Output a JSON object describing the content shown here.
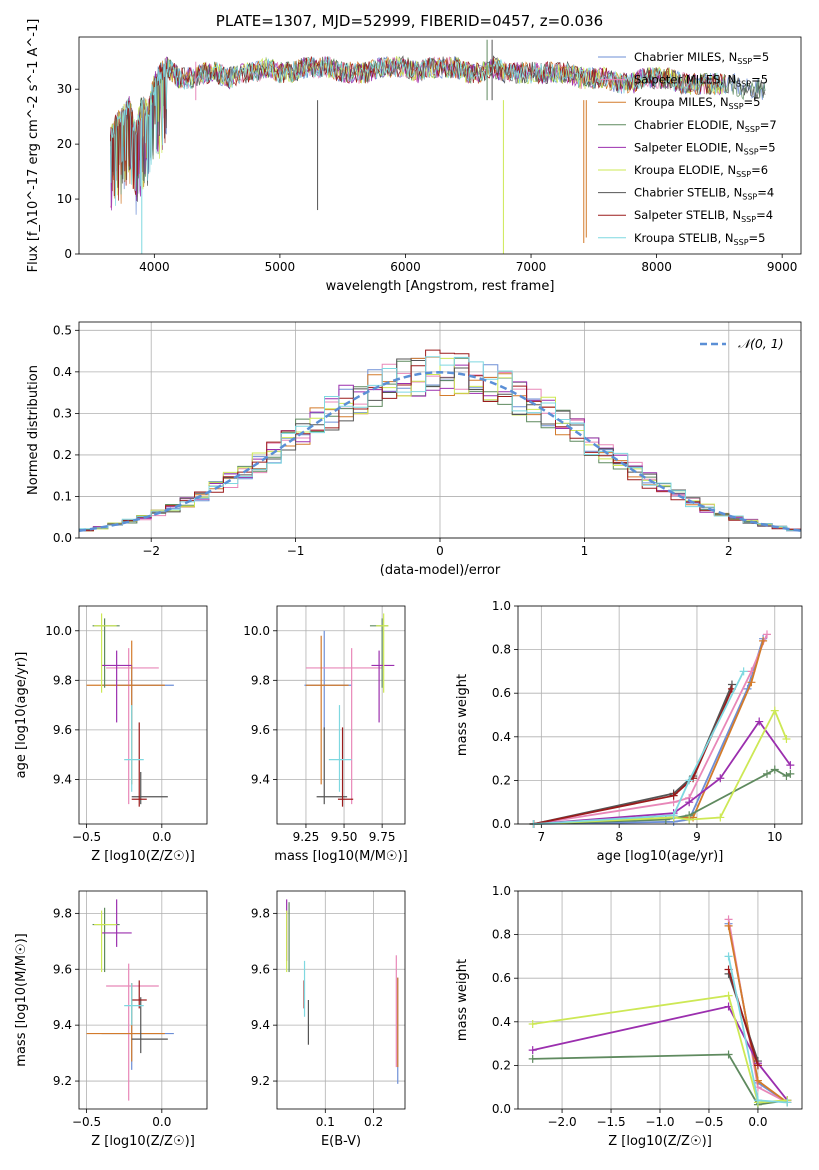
{
  "figure": {
    "title": "PLATE=1307, MJD=52999, FIBERID=0457, z=0.036"
  },
  "models": [
    {
      "name": "Chabrier MILES",
      "nssp": "5",
      "color": "#6e8fd6"
    },
    {
      "name": "Salpeter MILES",
      "nssp": "5",
      "color": "#e887b8"
    },
    {
      "name": "Kroupa MILES",
      "nssp": "5",
      "color": "#d37b2b"
    },
    {
      "name": "Chabrier ELODIE",
      "nssp": "7",
      "color": "#5f8a5f"
    },
    {
      "name": "Salpeter ELODIE",
      "nssp": "5",
      "color": "#9b2fae"
    },
    {
      "name": "Kroupa ELODIE",
      "nssp": "6",
      "color": "#cde855"
    },
    {
      "name": "Chabrier STELIB",
      "nssp": "4",
      "color": "#555555"
    },
    {
      "name": "Salpeter STELIB",
      "nssp": "4",
      "color": "#9b1b1b"
    },
    {
      "name": "Kroupa STELIB",
      "nssp": "5",
      "color": "#7fd8e0"
    }
  ],
  "chart_data": [
    {
      "id": "spectrum",
      "type": "line",
      "xlabel": "wavelength [Angstrom, rest frame]",
      "ylabel": "Flux [f_λ10^-17 erg cm^-2 s^-1 A^-1]",
      "xlim": [
        3400,
        9150
      ],
      "ylim": [
        0,
        39.5
      ],
      "xticks": [
        4000,
        5000,
        6000,
        7000,
        8000,
        9000
      ],
      "yticks": [
        0,
        10,
        20,
        30
      ],
      "grid": false,
      "legend": "top-right",
      "x": [
        3650,
        3700,
        3750,
        3800,
        3850,
        3900,
        3950,
        4000,
        4050,
        4100,
        4150,
        4200,
        4300,
        4400,
        4500,
        4600,
        4700,
        4800,
        4900,
        5000,
        5100,
        5200,
        5300,
        5400,
        5500,
        5600,
        5700,
        5800,
        5900,
        6000,
        6100,
        6200,
        6300,
        6400,
        6500,
        6600,
        6700,
        6800,
        6900,
        7000,
        7100,
        7200,
        7300,
        7400,
        7500,
        7600,
        7700,
        7800,
        7900,
        8000,
        8100,
        8200,
        8300,
        8400,
        8500,
        8600,
        8700,
        8800,
        8870
      ],
      "flux": [
        21,
        24,
        25,
        27,
        22,
        27,
        26,
        31,
        33,
        34,
        33,
        32,
        32,
        33,
        33,
        32,
        33,
        33,
        34,
        33,
        33,
        34,
        34,
        34,
        33,
        33,
        33,
        34,
        34,
        34,
        33,
        34,
        34,
        34,
        33,
        33,
        34,
        33,
        33,
        33,
        33,
        33,
        33,
        32,
        32,
        32,
        31,
        31,
        32,
        32,
        32,
        31,
        31,
        31,
        31,
        31,
        30,
        30,
        30
      ]
    },
    {
      "id": "residuals",
      "type": "histogram",
      "xlabel": "(data-model)/error",
      "ylabel": "Normed distribution",
      "xlim": [
        -2.5,
        2.5
      ],
      "ylim": [
        0,
        0.52
      ],
      "xticks": [
        -2,
        -1,
        0,
        1,
        2
      ],
      "yticks": [
        0.0,
        0.1,
        0.2,
        0.3,
        0.4,
        0.5
      ],
      "grid": true,
      "legend": "top-right",
      "reference_label": "𝒩(0, 1)",
      "bin_width": 0.1,
      "bin_start": -2.5
    },
    {
      "id": "age_vs_Z",
      "type": "scatter",
      "xlabel": "Z [log10(Z/Z☉)]",
      "ylabel": "age  [log10(age/yr)]",
      "xlim": [
        -0.55,
        0.3
      ],
      "ylim": [
        9.22,
        10.1
      ],
      "xticks": [
        -0.5,
        0.0
      ],
      "yticks": [
        9.4,
        9.6,
        9.8,
        10.0
      ],
      "grid": true,
      "points": [
        {
          "x": -0.2,
          "y": 9.78,
          "xerr": [
            0.2,
            0.28
          ],
          "yerr": [
            0.18,
            0.08
          ]
        },
        {
          "x": -0.22,
          "y": 9.85,
          "xerr": [
            0.15,
            0.2
          ],
          "yerr": [
            0.55,
            0.08
          ]
        },
        {
          "x": -0.2,
          "y": 9.78,
          "xerr": [
            0.3,
            0.22
          ],
          "yerr": [
            0.4,
            0.18
          ]
        },
        {
          "x": -0.38,
          "y": 10.02,
          "xerr": [
            0.08,
            0.1
          ],
          "yerr": [
            0.25,
            0.03
          ]
        },
        {
          "x": -0.3,
          "y": 9.86,
          "xerr": [
            0.1,
            0.1
          ],
          "yerr": [
            0.23,
            0.06
          ]
        },
        {
          "x": -0.4,
          "y": 10.02,
          "xerr": [
            0.05,
            0.1
          ],
          "yerr": [
            0.27,
            0.05
          ]
        },
        {
          "x": -0.14,
          "y": 9.33,
          "xerr": [
            0.06,
            0.18
          ],
          "yerr": [
            0.03,
            0.1
          ]
        },
        {
          "x": -0.15,
          "y": 9.32,
          "xerr": [
            0.05,
            0.05
          ],
          "yerr": [
            0.03,
            0.31
          ]
        },
        {
          "x": -0.2,
          "y": 9.48,
          "xerr": [
            0.05,
            0.08
          ],
          "yerr": [
            0.13,
            0.22
          ]
        }
      ]
    },
    {
      "id": "age_vs_mass",
      "type": "scatter",
      "xlabel": "mass [log10(M/M☉)]",
      "ylabel": "",
      "xlim": [
        9.06,
        9.9
      ],
      "ylim": [
        9.22,
        10.1
      ],
      "xticks": [
        9.25,
        9.5,
        9.75
      ],
      "yticks": [
        9.4,
        9.6,
        9.8,
        10.0
      ],
      "grid": true,
      "points": [
        {
          "x": 9.37,
          "y": 9.78,
          "xerr": [
            0.13,
            0.18
          ],
          "yerr": [
            0.18,
            0.22
          ]
        },
        {
          "x": 9.55,
          "y": 9.85,
          "xerr": [
            0.3,
            0.2
          ],
          "yerr": [
            0.55,
            0.08
          ]
        },
        {
          "x": 9.35,
          "y": 9.78,
          "xerr": [
            0.1,
            0.18
          ],
          "yerr": [
            0.4,
            0.2
          ]
        },
        {
          "x": 9.75,
          "y": 10.02,
          "xerr": [
            0.08,
            0.04
          ],
          "yerr": [
            0.25,
            0.03
          ]
        },
        {
          "x": 9.73,
          "y": 9.86,
          "xerr": [
            0.05,
            0.1
          ],
          "yerr": [
            0.23,
            0.06
          ]
        },
        {
          "x": 9.76,
          "y": 10.02,
          "xerr": [
            0.05,
            0.03
          ],
          "yerr": [
            0.27,
            0.05
          ]
        },
        {
          "x": 9.37,
          "y": 9.33,
          "xerr": [
            0.05,
            0.15
          ],
          "yerr": [
            0.03,
            0.28
          ]
        },
        {
          "x": 9.49,
          "y": 9.32,
          "xerr": [
            0.03,
            0.07
          ],
          "yerr": [
            0.03,
            0.29
          ]
        },
        {
          "x": 9.47,
          "y": 9.48,
          "xerr": [
            0.07,
            0.08
          ],
          "yerr": [
            0.13,
            0.22
          ]
        }
      ]
    },
    {
      "id": "mass_weight_vs_age",
      "type": "line",
      "xlabel": "age  [log10(age/yr)]",
      "ylabel": "mass weight",
      "xlim": [
        6.7,
        10.35
      ],
      "ylim": [
        0,
        1
      ],
      "xticks": [
        7,
        8,
        9,
        10
      ],
      "yticks": [
        0.0,
        0.2,
        0.4,
        0.6,
        0.8,
        1.0
      ],
      "grid": true,
      "series": [
        {
          "x": [
            6.9,
            8.7,
            8.9,
            9.65,
            9.85
          ],
          "y": [
            0.0,
            0.01,
            0.02,
            0.62,
            0.85
          ]
        },
        {
          "x": [
            6.9,
            8.7,
            8.9,
            9.7,
            9.9
          ],
          "y": [
            0.0,
            0.1,
            0.12,
            0.7,
            0.87
          ]
        },
        {
          "x": [
            6.9,
            8.7,
            8.95,
            9.7,
            9.85
          ],
          "y": [
            0.0,
            0.03,
            0.03,
            0.65,
            0.84
          ]
        },
        {
          "x": [
            6.9,
            8.6,
            8.9,
            9.9,
            10.0,
            10.15,
            10.2
          ],
          "y": [
            0.0,
            0.02,
            0.04,
            0.23,
            0.25,
            0.22,
            0.23
          ]
        },
        {
          "x": [
            6.9,
            8.7,
            8.9,
            9.3,
            9.8,
            10.2
          ],
          "y": [
            0.0,
            0.05,
            0.1,
            0.21,
            0.47,
            0.27
          ]
        },
        {
          "x": [
            6.9,
            8.7,
            8.9,
            9.3,
            10.0,
            10.15
          ],
          "y": [
            0.0,
            0.03,
            0.02,
            0.03,
            0.52,
            0.39
          ]
        },
        {
          "x": [
            6.9,
            8.7,
            8.95,
            9.45
          ],
          "y": [
            0.0,
            0.14,
            0.22,
            0.64
          ]
        },
        {
          "x": [
            6.9,
            8.7,
            8.95,
            9.45
          ],
          "y": [
            0.0,
            0.13,
            0.21,
            0.62
          ]
        },
        {
          "x": [
            6.9,
            8.7,
            8.9,
            9.6
          ],
          "y": [
            0.0,
            0.04,
            0.2,
            0.7
          ]
        }
      ]
    },
    {
      "id": "mass_vs_Z",
      "type": "scatter",
      "xlabel": "Z [log10(Z/Z☉)]",
      "ylabel": "mass [log10(M/M☉)]",
      "xlim": [
        -0.55,
        0.3
      ],
      "ylim": [
        9.1,
        9.88
      ],
      "xticks": [
        -0.5,
        0.0
      ],
      "yticks": [
        9.2,
        9.4,
        9.6,
        9.8
      ],
      "grid": true,
      "points": [
        {
          "x": -0.2,
          "y": 9.37,
          "xerr": [
            0.2,
            0.28
          ],
          "yerr": [
            0.13,
            0.18
          ]
        },
        {
          "x": -0.22,
          "y": 9.54,
          "xerr": [
            0.15,
            0.2
          ],
          "yerr": [
            0.41,
            0.08
          ]
        },
        {
          "x": -0.2,
          "y": 9.37,
          "xerr": [
            0.3,
            0.22
          ],
          "yerr": [
            0.1,
            0.18
          ]
        },
        {
          "x": -0.38,
          "y": 9.76,
          "xerr": [
            0.08,
            0.1
          ],
          "yerr": [
            0.17,
            0.06
          ]
        },
        {
          "x": -0.3,
          "y": 9.73,
          "xerr": [
            0.1,
            0.1
          ],
          "yerr": [
            0.05,
            0.12
          ]
        },
        {
          "x": -0.4,
          "y": 9.76,
          "xerr": [
            0.05,
            0.1
          ],
          "yerr": [
            0.17,
            0.05
          ]
        },
        {
          "x": -0.14,
          "y": 9.35,
          "xerr": [
            0.06,
            0.18
          ],
          "yerr": [
            0.05,
            0.15
          ]
        },
        {
          "x": -0.15,
          "y": 9.49,
          "xerr": [
            0.05,
            0.05
          ],
          "yerr": [
            0.03,
            0.07
          ]
        },
        {
          "x": -0.2,
          "y": 9.47,
          "xerr": [
            0.05,
            0.08
          ],
          "yerr": [
            0.07,
            0.08
          ]
        }
      ]
    },
    {
      "id": "mass_vs_ebv",
      "type": "scatter",
      "xlabel": "E(B-V)",
      "ylabel": "",
      "xlim": [
        0.0,
        0.265
      ],
      "ylim": [
        9.1,
        9.88
      ],
      "xticks": [
        0.1,
        0.2
      ],
      "yticks": [
        9.2,
        9.4,
        9.6,
        9.8
      ],
      "grid": true,
      "points": [
        {
          "x": 0.25,
          "y": 9.37,
          "xerr": [
            0,
            0
          ],
          "yerr": [
            0.18,
            0.2
          ]
        },
        {
          "x": 0.247,
          "y": 9.5,
          "xerr": [
            0,
            0
          ],
          "yerr": [
            0.25,
            0.15
          ]
        },
        {
          "x": 0.25,
          "y": 9.37,
          "xerr": [
            0,
            0
          ],
          "yerr": [
            0.12,
            0.2
          ]
        },
        {
          "x": 0.025,
          "y": 9.76,
          "xerr": [
            0,
            0
          ],
          "yerr": [
            0.17,
            0.08
          ]
        },
        {
          "x": 0.02,
          "y": 9.73,
          "xerr": [
            0,
            0
          ],
          "yerr": [
            0.1,
            0.12
          ]
        },
        {
          "x": 0.02,
          "y": 9.76,
          "xerr": [
            0,
            0
          ],
          "yerr": [
            0.17,
            0.05
          ]
        },
        {
          "x": 0.065,
          "y": 9.41,
          "xerr": [
            0,
            0
          ],
          "yerr": [
            0.08,
            0.08
          ]
        },
        {
          "x": 0.056,
          "y": 9.49,
          "xerr": [
            0,
            0
          ],
          "yerr": [
            0.03,
            0.07
          ]
        },
        {
          "x": 0.057,
          "y": 9.51,
          "xerr": [
            0,
            0
          ],
          "yerr": [
            0.08,
            0.12
          ]
        }
      ]
    },
    {
      "id": "mass_weight_vs_Z",
      "type": "line",
      "xlabel": "Z [log10(Z/Z☉)]",
      "ylabel": "mass weight",
      "xlim": [
        -2.45,
        0.45
      ],
      "ylim": [
        0,
        1
      ],
      "xticks": [
        -2.0,
        -1.5,
        -1.0,
        -0.5,
        0.0
      ],
      "yticks": [
        0.0,
        0.2,
        0.4,
        0.6,
        0.8,
        1.0
      ],
      "grid": true,
      "series": [
        {
          "x": [
            -0.3,
            0.0,
            0.3
          ],
          "y": [
            0.85,
            0.12,
            0.03
          ]
        },
        {
          "x": [
            -0.3,
            0.0,
            0.3
          ],
          "y": [
            0.87,
            0.1,
            0.03
          ]
        },
        {
          "x": [
            -0.3,
            0.0,
            0.3
          ],
          "y": [
            0.84,
            0.13,
            0.03
          ]
        },
        {
          "x": [
            -2.3,
            -0.3,
            0.0,
            0.3
          ],
          "y": [
            0.23,
            0.25,
            0.02,
            0.04
          ]
        },
        {
          "x": [
            -2.3,
            -0.3,
            0.0,
            0.3
          ],
          "y": [
            0.27,
            0.47,
            0.21,
            0.04
          ]
        },
        {
          "x": [
            -2.3,
            -0.3,
            0.0,
            0.3
          ],
          "y": [
            0.39,
            0.52,
            0.03,
            0.04
          ]
        },
        {
          "x": [
            -0.3,
            0.0
          ],
          "y": [
            0.62,
            0.22
          ]
        },
        {
          "x": [
            -0.3,
            0.0
          ],
          "y": [
            0.64,
            0.2
          ]
        },
        {
          "x": [
            -0.3,
            0.0,
            0.3
          ],
          "y": [
            0.7,
            0.04,
            0.03
          ]
        }
      ]
    }
  ]
}
